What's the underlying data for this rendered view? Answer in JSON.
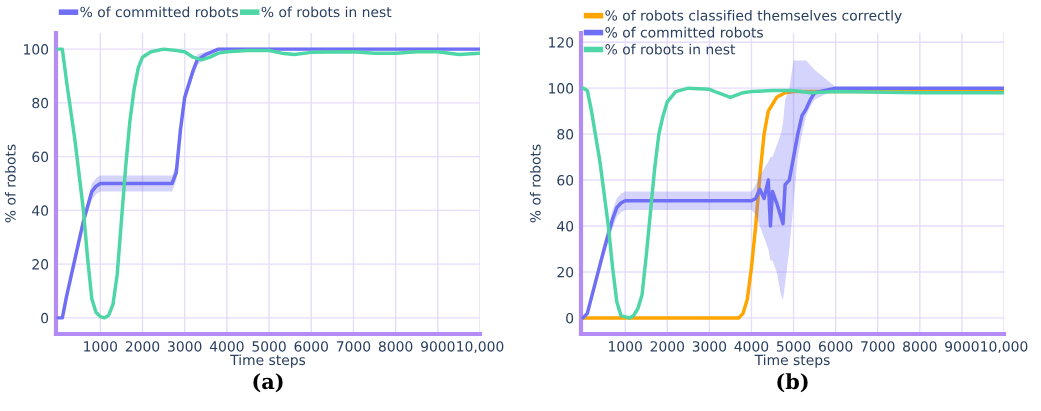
{
  "chart_data": [
    {
      "type": "line",
      "xlabel": "Time steps",
      "ylabel": "% of robots",
      "xlim": [
        -50,
        10000
      ],
      "ylim": [
        -6,
        106
      ],
      "xticks": [
        1000,
        2000,
        3000,
        4000,
        5000,
        6000,
        7000,
        8000,
        9000,
        {
          "value": 10000,
          "label": "10,000"
        }
      ],
      "yticks": [
        0,
        20,
        40,
        60,
        80,
        100
      ],
      "grid": true,
      "legend": "top left",
      "marker": "none",
      "line_style": "solid",
      "annotations": [
        "(a)"
      ],
      "series": [
        {
          "name": "% of committed robots",
          "color": "#6f6ff5",
          "x": [
            0,
            100,
            200,
            400,
            600,
            800,
            900,
            1000,
            2700,
            2800,
            2900,
            3000,
            3200,
            3300,
            3500,
            3800,
            10000
          ],
          "values": [
            0,
            0,
            8,
            22,
            36,
            47,
            49,
            50,
            50,
            54,
            70,
            82,
            92,
            96,
            98,
            100,
            100
          ],
          "lower": [
            0,
            0,
            7,
            21,
            34,
            44,
            46,
            47,
            47,
            51,
            68,
            80,
            90,
            94,
            97,
            99.5,
            99.5
          ],
          "upper": [
            0,
            0,
            9,
            23,
            38,
            50,
            52,
            53,
            53,
            57,
            72,
            84,
            94,
            98,
            99,
            100.5,
            100.5
          ]
        },
        {
          "name": "% of robots in nest",
          "color": "#4fd6a6",
          "x": [
            0,
            100,
            200,
            400,
            600,
            700,
            800,
            900,
            1000,
            1100,
            1200,
            1300,
            1400,
            1500,
            1600,
            1700,
            1800,
            1900,
            2000,
            2200,
            2500,
            2800,
            3000,
            3200,
            3400,
            3600,
            3800,
            4000,
            4500,
            5000,
            5300,
            5600,
            6000,
            7000,
            7500,
            8000,
            8500,
            9000,
            9500,
            10000
          ],
          "values": [
            100,
            100,
            88,
            66,
            40,
            22,
            7,
            2,
            0.5,
            0,
            1,
            5,
            16,
            36,
            56,
            73,
            85,
            93,
            97,
            99,
            100,
            99.5,
            99,
            97,
            96,
            97,
            98.5,
            99,
            99.5,
            99.5,
            98.5,
            98,
            98.8,
            99,
            98.5,
            98.5,
            99,
            99,
            98,
            98.5
          ]
        }
      ]
    },
    {
      "type": "line",
      "xlabel": "Time steps",
      "ylabel": "% of robots",
      "xlim": [
        -50,
        10000
      ],
      "ylim": [
        -7,
        124
      ],
      "xticks": [
        1000,
        2000,
        3000,
        4000,
        5000,
        6000,
        7000,
        8000,
        9000,
        {
          "value": 10000,
          "label": "10,000"
        }
      ],
      "yticks": [
        0,
        20,
        40,
        60,
        80,
        100,
        120
      ],
      "grid": true,
      "legend": "top left",
      "marker": "none",
      "line_style": "solid",
      "annotations": [
        "(b)"
      ],
      "series": [
        {
          "name": "% of robots classified themselves correctly",
          "color": "#ffa500",
          "x": [
            0,
            3700,
            3800,
            3900,
            4000,
            4100,
            4200,
            4300,
            4400,
            4600,
            4800,
            5000,
            10000
          ],
          "values": [
            0,
            0,
            2,
            8,
            22,
            40,
            62,
            80,
            90,
            96,
            98,
            98.5,
            98.5
          ]
        },
        {
          "name": "% of committed robots",
          "color": "#6f6ff5",
          "x": [
            0,
            100,
            300,
            500,
            700,
            800,
            900,
            1000,
            4000,
            4100,
            4200,
            4300,
            4400,
            4450,
            4500,
            4600,
            4700,
            4750,
            4800,
            4900,
            5000,
            5100,
            5200,
            5300,
            5400,
            5500,
            6000,
            10000
          ],
          "values": [
            0,
            2,
            16,
            30,
            43,
            48,
            50,
            51,
            51,
            52,
            56,
            52,
            60,
            40,
            55,
            50,
            44,
            41,
            58,
            60,
            70,
            80,
            88,
            91,
            95,
            98,
            100,
            100
          ],
          "lower": [
            0,
            1,
            14,
            27,
            39,
            44,
            46,
            47,
            47,
            45,
            40,
            35,
            30,
            25,
            25,
            20,
            10,
            8,
            15,
            30,
            50,
            70,
            80,
            88,
            92,
            95,
            99.5,
            99.5
          ],
          "upper": [
            0,
            3,
            18,
            33,
            47,
            52,
            54,
            55,
            55,
            58,
            62,
            65,
            68,
            70,
            70,
            75,
            80,
            85,
            95,
            100,
            112,
            112,
            112,
            112,
            110,
            108,
            100.5,
            100.5
          ]
        },
        {
          "name": "% of robots in nest",
          "color": "#4fd6a6",
          "x": [
            0,
            100,
            200,
            400,
            600,
            700,
            800,
            900,
            1100,
            1200,
            1300,
            1400,
            1500,
            1600,
            1700,
            1800,
            1900,
            2000,
            2200,
            2500,
            3000,
            3200,
            3500,
            3800,
            4000,
            4500,
            5000,
            5400,
            6000,
            8000,
            9500,
            10000
          ],
          "values": [
            100,
            99,
            90,
            68,
            40,
            22,
            7,
            1,
            0,
            1,
            4,
            10,
            27,
            46,
            65,
            80,
            88,
            94,
            98.5,
            100,
            99.5,
            98,
            96,
            98,
            98.5,
            99,
            99,
            98,
            98.5,
            98,
            98,
            98
          ]
        }
      ]
    }
  ]
}
